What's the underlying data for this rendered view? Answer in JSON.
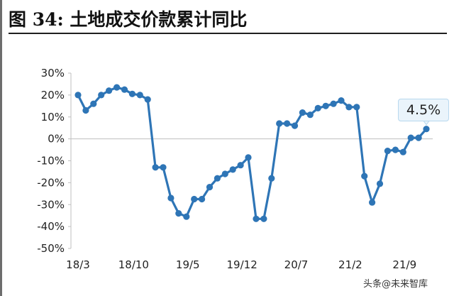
{
  "title": "图 34:  土地成交价款累计同比",
  "watermark": "头条@未来智库",
  "annotation": "4.5%",
  "colors": {
    "line": "#2e75b6",
    "text": "#222222",
    "axis": "#bfbfbf"
  },
  "chart_data": {
    "type": "line",
    "title": "图 34:  土地成交价款累计同比",
    "xlabel": "",
    "ylabel": "",
    "ylim": [
      -50,
      30
    ],
    "yticks": [
      "30%",
      "20%",
      "10%",
      "0%",
      "-10%",
      "-20%",
      "-30%",
      "-40%",
      "-50%"
    ],
    "xticks": [
      "18/3",
      "18/10",
      "19/5",
      "19/12",
      "20/7",
      "21/2",
      "21/9"
    ],
    "grid": false,
    "series": [
      {
        "values": [
          20,
          13,
          16,
          20,
          22,
          23.5,
          22.5,
          20.5,
          20,
          18,
          -13,
          -13,
          -27,
          -34,
          -35.5,
          -27.5,
          -27.5,
          -22,
          -18,
          -16,
          -14,
          -12,
          -8.5,
          -36.5,
          -36.5,
          -18,
          7,
          7,
          6,
          12,
          11,
          14,
          15,
          16,
          17.5,
          14.5,
          14.5,
          -17,
          -29,
          -20.5,
          -5.5,
          -5,
          -6,
          0.5,
          0.5,
          4.5
        ]
      }
    ],
    "annotation": "4.5%"
  }
}
